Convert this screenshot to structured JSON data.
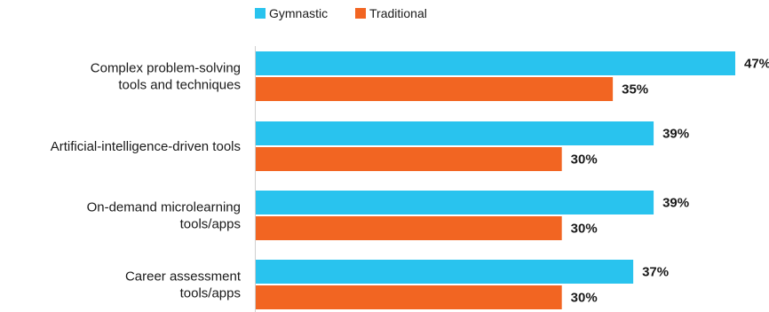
{
  "chart_data": {
    "type": "bar",
    "orientation": "horizontal",
    "title": "",
    "xlabel": "",
    "ylabel": "",
    "grid": false,
    "legend_position": "top",
    "categories": [
      [
        "Complex problem-solving",
        "tools and techniques"
      ],
      [
        "Artificial-intelligence-driven tools"
      ],
      [
        "On-demand microlearning",
        "tools/apps"
      ],
      [
        "Career assessment",
        "tools/apps"
      ]
    ],
    "series": [
      {
        "name": "Gymnastic",
        "color": "#29c3ee",
        "values": [
          47,
          39,
          39,
          37
        ],
        "labels": [
          "47%",
          "39%",
          "39%",
          "37%"
        ]
      },
      {
        "name": "Traditional",
        "color": "#f26522",
        "values": [
          35,
          30,
          30,
          30
        ],
        "labels": [
          "35%",
          "30%",
          "30%",
          "30%"
        ]
      }
    ],
    "xlim": [
      0,
      47
    ],
    "unit": "%"
  }
}
